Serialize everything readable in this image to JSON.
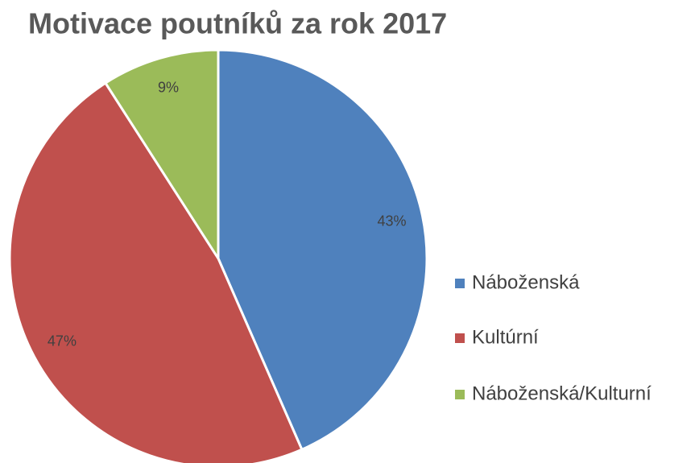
{
  "chart_data": {
    "type": "pie",
    "title": "Motivace poutníků za rok 2017",
    "categories": [
      "Náboženská",
      "Kultúrní",
      "Náboženská/Kulturní"
    ],
    "values": [
      43,
      47,
      9
    ],
    "value_labels": [
      "43%",
      "47%",
      "9%"
    ],
    "colors": [
      "#4f81bd",
      "#c0504d",
      "#9bbb59"
    ],
    "legend": "right"
  }
}
